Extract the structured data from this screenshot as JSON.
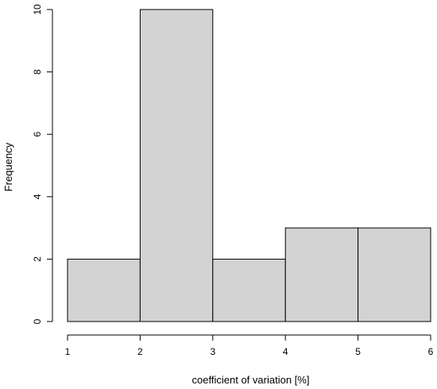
{
  "chart_data": {
    "type": "bar",
    "subtype": "histogram",
    "title": "",
    "xlabel": "coefficient of variation [%]",
    "ylabel": "Frequency",
    "bins": [
      {
        "start": 1,
        "end": 2,
        "count": 2
      },
      {
        "start": 2,
        "end": 3,
        "count": 10
      },
      {
        "start": 3,
        "end": 4,
        "count": 2
      },
      {
        "start": 4,
        "end": 5,
        "count": 3
      },
      {
        "start": 5,
        "end": 6,
        "count": 3
      }
    ],
    "xlim": [
      1,
      6
    ],
    "ylim": [
      0,
      10
    ],
    "xticks": [
      1,
      2,
      3,
      4,
      5,
      6
    ],
    "yticks": [
      0,
      2,
      4,
      6,
      8,
      10
    ],
    "grid": false,
    "bar_fill": "#d3d3d3",
    "bar_stroke": "#000000"
  }
}
